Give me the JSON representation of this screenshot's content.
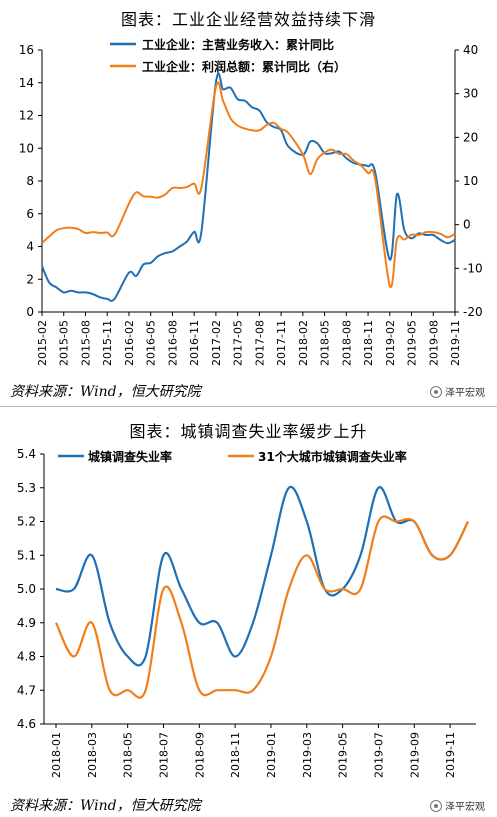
{
  "chart_data": [
    {
      "type": "line",
      "title": "图表：工业企业经营效益持续下滑",
      "x_ticks": [
        "2015-02",
        "2015-05",
        "2015-08",
        "2015-11",
        "2016-02",
        "2016-05",
        "2016-08",
        "2016-11",
        "2017-02",
        "2017-05",
        "2017-08",
        "2017-11",
        "2018-02",
        "2018-05",
        "2018-08",
        "2018-11",
        "2019-02",
        "2019-05",
        "2019-08",
        "2019-11"
      ],
      "ylim_left": [
        0,
        16
      ],
      "yticks_left": [
        0,
        2,
        4,
        6,
        8,
        10,
        12,
        14,
        16
      ],
      "ylim_right": [
        -20,
        40
      ],
      "yticks_right": [
        -20,
        -10,
        0,
        10,
        20,
        30,
        40
      ],
      "legend_position": "top",
      "series": [
        {
          "name": "工业企业：主营业务收入：累计同比",
          "axis": "left",
          "color": "#1F6FB5",
          "x": [
            "2015-02",
            "2015-03",
            "2015-04",
            "2015-05",
            "2015-06",
            "2015-07",
            "2015-08",
            "2015-09",
            "2015-10",
            "2015-11",
            "2015-12",
            "2016-02",
            "2016-03",
            "2016-04",
            "2016-05",
            "2016-06",
            "2016-07",
            "2016-08",
            "2016-09",
            "2016-10",
            "2016-11",
            "2016-12",
            "2017-02",
            "2017-03",
            "2017-04",
            "2017-05",
            "2017-06",
            "2017-07",
            "2017-08",
            "2017-09",
            "2017-10",
            "2017-11",
            "2017-12",
            "2018-02",
            "2018-03",
            "2018-04",
            "2018-05",
            "2018-06",
            "2018-07",
            "2018-08",
            "2018-09",
            "2018-10",
            "2018-11",
            "2018-12",
            "2019-02",
            "2019-03",
            "2019-04",
            "2019-05",
            "2019-06",
            "2019-07",
            "2019-08",
            "2019-09",
            "2019-10",
            "2019-11"
          ],
          "values": [
            2.8,
            1.8,
            1.5,
            1.2,
            1.3,
            1.2,
            1.2,
            1.1,
            0.9,
            0.8,
            0.8,
            2.4,
            2.2,
            2.9,
            3.0,
            3.4,
            3.6,
            3.7,
            4.0,
            4.3,
            4.9,
            4.9,
            14.0,
            13.6,
            13.7,
            13.0,
            12.9,
            12.5,
            12.3,
            11.6,
            11.3,
            11.1,
            10.1,
            9.6,
            10.4,
            10.3,
            9.7,
            9.7,
            9.8,
            9.4,
            9.1,
            9.0,
            8.9,
            8.5,
            3.2,
            7.2,
            5.0,
            4.5,
            4.8,
            4.7,
            4.7,
            4.4,
            4.2,
            4.4
          ]
        },
        {
          "name": "工业企业：利润总额：累计同比（右）",
          "axis": "right",
          "color": "#F07F1B",
          "x": [
            "2015-02",
            "2015-03",
            "2015-04",
            "2015-05",
            "2015-06",
            "2015-07",
            "2015-08",
            "2015-09",
            "2015-10",
            "2015-11",
            "2015-12",
            "2016-02",
            "2016-03",
            "2016-04",
            "2016-05",
            "2016-06",
            "2016-07",
            "2016-08",
            "2016-09",
            "2016-10",
            "2016-11",
            "2016-12",
            "2017-02",
            "2017-03",
            "2017-04",
            "2017-05",
            "2017-06",
            "2017-07",
            "2017-08",
            "2017-09",
            "2017-10",
            "2017-11",
            "2017-12",
            "2018-02",
            "2018-03",
            "2018-04",
            "2018-05",
            "2018-06",
            "2018-07",
            "2018-08",
            "2018-09",
            "2018-10",
            "2018-11",
            "2018-12",
            "2019-02",
            "2019-03",
            "2019-04",
            "2019-05",
            "2019-06",
            "2019-07",
            "2019-08",
            "2019-09",
            "2019-10",
            "2019-11"
          ],
          "values": [
            -4.2,
            -2.7,
            -1.3,
            -0.8,
            -0.7,
            -1.0,
            -1.9,
            -1.7,
            -1.9,
            -1.8,
            -2.3,
            4.8,
            7.4,
            6.5,
            6.4,
            6.2,
            6.9,
            8.4,
            8.4,
            8.6,
            9.4,
            8.5,
            31.5,
            28.3,
            24.4,
            22.7,
            22.0,
            21.6,
            21.6,
            22.8,
            23.3,
            21.9,
            21.0,
            16.1,
            11.6,
            15.0,
            16.5,
            17.2,
            16.2,
            16.2,
            14.7,
            13.6,
            11.8,
            10.3,
            -14.0,
            -3.3,
            -3.4,
            -2.3,
            -2.4,
            -1.7,
            -1.7,
            -2.1,
            -2.9,
            -2.1
          ]
        }
      ]
    },
    {
      "type": "line",
      "title": "图表：城镇调查失业率缓步上升",
      "x_ticks": [
        "2018-01",
        "2018-03",
        "2018-05",
        "2018-07",
        "2018-09",
        "2018-11",
        "2019-01",
        "2019-03",
        "2019-05",
        "2019-07",
        "2019-09",
        "2019-11"
      ],
      "ylim": [
        4.6,
        5.4
      ],
      "yticks": [
        "4.6",
        "4.7",
        "4.8",
        "4.9",
        "5.0",
        "5.1",
        "5.2",
        "5.3",
        "5.4"
      ],
      "legend_position": "top",
      "series": [
        {
          "name": "城镇调查失业率",
          "color": "#1F6FB5",
          "x": [
            "2018-01",
            "2018-02",
            "2018-03",
            "2018-04",
            "2018-05",
            "2018-06",
            "2018-07",
            "2018-08",
            "2018-09",
            "2018-10",
            "2018-11",
            "2018-12",
            "2019-01",
            "2019-02",
            "2019-03",
            "2019-04",
            "2019-05",
            "2019-06",
            "2019-07",
            "2019-08",
            "2019-09",
            "2019-10",
            "2019-11",
            "2019-12"
          ],
          "values": [
            5.0,
            5.0,
            5.1,
            4.9,
            4.8,
            4.8,
            5.1,
            5.0,
            4.9,
            4.9,
            4.8,
            4.9,
            5.1,
            5.3,
            5.2,
            5.0,
            5.0,
            5.1,
            5.3,
            5.2,
            5.2,
            5.1,
            5.1,
            5.2
          ]
        },
        {
          "name": "31个大城市城镇调查失业率",
          "color": "#F07F1B",
          "x": [
            "2018-01",
            "2018-02",
            "2018-03",
            "2018-04",
            "2018-05",
            "2018-06",
            "2018-07",
            "2018-08",
            "2018-09",
            "2018-10",
            "2018-11",
            "2018-12",
            "2019-01",
            "2019-02",
            "2019-03",
            "2019-04",
            "2019-05",
            "2019-06",
            "2019-07",
            "2019-08",
            "2019-09",
            "2019-10",
            "2019-11",
            "2019-12"
          ],
          "values": [
            4.9,
            4.8,
            4.9,
            4.7,
            4.7,
            4.7,
            5.0,
            4.9,
            4.7,
            4.7,
            4.7,
            4.7,
            4.8,
            5.0,
            5.1,
            5.0,
            5.0,
            5.0,
            5.2,
            5.2,
            5.2,
            5.1,
            5.1,
            5.2
          ]
        }
      ]
    }
  ],
  "source_text": "资料来源：Wind，恒大研究院",
  "watermark": "泽平宏观"
}
